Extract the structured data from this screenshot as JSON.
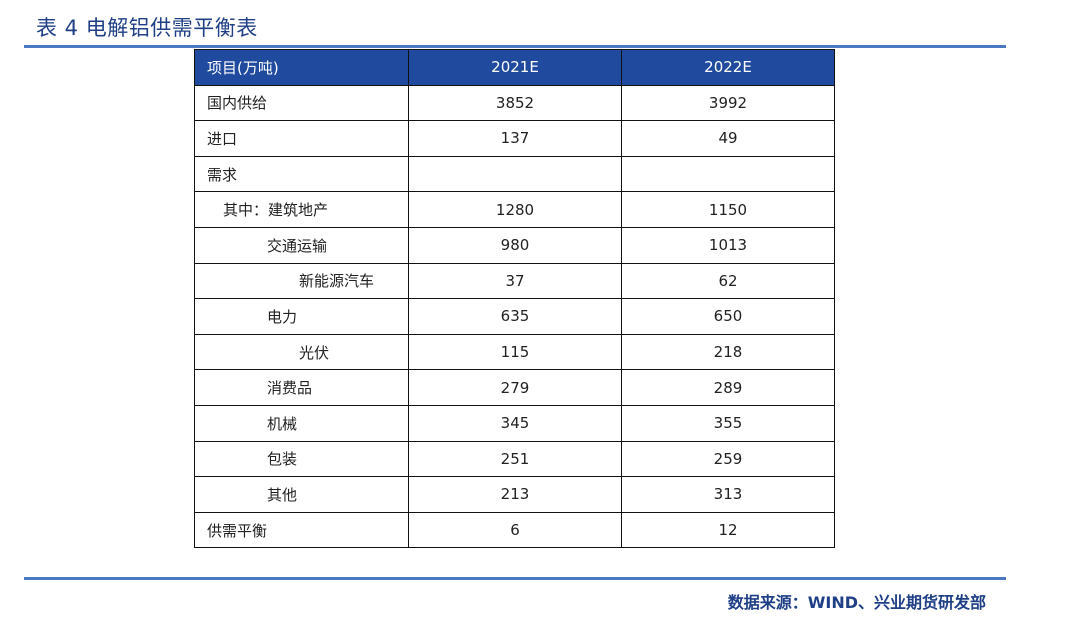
{
  "title": "表 4  电解铝供需平衡表",
  "table": {
    "headers": [
      "项目(万吨)",
      "2021E",
      "2022E"
    ],
    "rows": [
      {
        "label": "国内供给",
        "v2021": "3852",
        "v2022": "3992"
      },
      {
        "label": "进口",
        "v2021": "137",
        "v2022": "49"
      },
      {
        "label": "需求",
        "v2021": "",
        "v2022": ""
      },
      {
        "label": "其中：建筑地产",
        "v2021": "1280",
        "v2022": "1150"
      },
      {
        "label": "交通运输",
        "v2021": "980",
        "v2022": "1013"
      },
      {
        "label": "新能源汽车",
        "v2021": "37",
        "v2022": "62"
      },
      {
        "label": "电力",
        "v2021": "635",
        "v2022": "650"
      },
      {
        "label": "光伏",
        "v2021": "115",
        "v2022": "218"
      },
      {
        "label": "消费品",
        "v2021": "279",
        "v2022": "289"
      },
      {
        "label": "机械",
        "v2021": "345",
        "v2022": "355"
      },
      {
        "label": "包装",
        "v2021": "251",
        "v2022": "259"
      },
      {
        "label": "其他",
        "v2021": "213",
        "v2022": "313"
      },
      {
        "label": "供需平衡",
        "v2021": "6",
        "v2022": "12"
      }
    ]
  },
  "source": "数据来源：WIND、兴业期货研发部"
}
